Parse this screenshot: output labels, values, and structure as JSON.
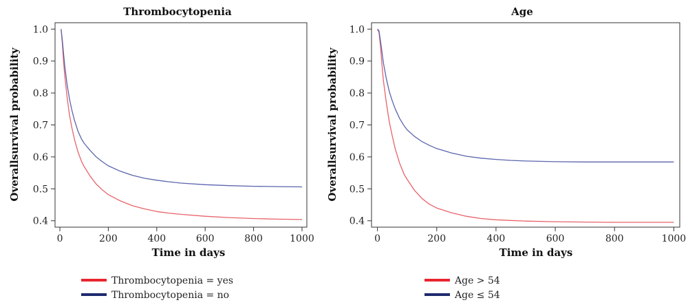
{
  "chart_data": [
    {
      "type": "line",
      "title": "Thrombocytopenia",
      "xlabel": "Time in days",
      "ylabel": "Overallsurvival probability",
      "xlim": [
        -20,
        1020
      ],
      "ylim": [
        0.38,
        1.02
      ],
      "xticks": [
        0,
        200,
        400,
        600,
        800,
        1000
      ],
      "xtick_labels": [
        "0",
        "200",
        "400",
        "600",
        "800",
        "1000"
      ],
      "yticks": [
        0.4,
        0.5,
        0.6,
        0.7,
        0.8,
        0.9,
        1.0
      ],
      "ytick_labels": [
        "0.4",
        "0.5",
        "0.6",
        "0.7",
        "0.8",
        "0.9",
        "1.0"
      ],
      "grid": false,
      "legend_position": "bottom-left",
      "series": [
        {
          "name": "Thrombocytopenia = yes",
          "color": "#e8626a",
          "x": [
            5,
            10,
            15,
            20,
            30,
            40,
            50,
            60,
            75,
            90,
            100,
            125,
            150,
            175,
            200,
            250,
            300,
            350,
            400,
            450,
            500,
            600,
            700,
            800,
            900,
            1000
          ],
          "y": [
            1.0,
            0.955,
            0.9,
            0.855,
            0.785,
            0.73,
            0.69,
            0.655,
            0.615,
            0.585,
            0.57,
            0.54,
            0.515,
            0.497,
            0.482,
            0.462,
            0.447,
            0.437,
            0.429,
            0.424,
            0.42,
            0.414,
            0.41,
            0.407,
            0.405,
            0.404
          ]
        },
        {
          "name": "Thrombocytopenia = no",
          "color": "#5a64ad",
          "x": [
            5,
            10,
            15,
            20,
            30,
            40,
            50,
            60,
            75,
            90,
            100,
            125,
            150,
            175,
            200,
            250,
            300,
            350,
            400,
            450,
            500,
            600,
            700,
            800,
            900,
            1000
          ],
          "y": [
            1.0,
            0.965,
            0.925,
            0.885,
            0.825,
            0.78,
            0.745,
            0.715,
            0.68,
            0.655,
            0.643,
            0.62,
            0.6,
            0.585,
            0.572,
            0.555,
            0.542,
            0.533,
            0.527,
            0.522,
            0.518,
            0.513,
            0.51,
            0.508,
            0.507,
            0.506
          ]
        }
      ]
    },
    {
      "type": "line",
      "title": "Age",
      "xlabel": "Time in days",
      "ylabel": "Overallsurvival probability",
      "xlim": [
        -20,
        1020
      ],
      "ylim": [
        0.38,
        1.02
      ],
      "xticks": [
        0,
        200,
        400,
        600,
        800,
        1000
      ],
      "xtick_labels": [
        "0",
        "200",
        "400",
        "600",
        "800",
        "1000"
      ],
      "yticks": [
        0.4,
        0.5,
        0.6,
        0.7,
        0.8,
        0.9,
        1.0
      ],
      "ytick_labels": [
        "0.4",
        "0.5",
        "0.6",
        "0.7",
        "0.8",
        "0.9",
        "1.0"
      ],
      "grid": false,
      "legend_position": "bottom-left",
      "series": [
        {
          "name": "Age > 54",
          "color": "#e8626a",
          "x": [
            0,
            5,
            10,
            15,
            20,
            30,
            40,
            50,
            60,
            75,
            90,
            100,
            125,
            150,
            175,
            200,
            250,
            300,
            350,
            400,
            450,
            500,
            600,
            700,
            800,
            900,
            1000
          ],
          "y": [
            1.0,
            0.99,
            0.95,
            0.89,
            0.84,
            0.77,
            0.71,
            0.665,
            0.625,
            0.58,
            0.545,
            0.53,
            0.495,
            0.47,
            0.452,
            0.44,
            0.425,
            0.414,
            0.407,
            0.403,
            0.401,
            0.399,
            0.397,
            0.396,
            0.395,
            0.395,
            0.395
          ]
        },
        {
          "name": "Age ≤ 54",
          "color": "#5a64ad",
          "x": [
            0,
            5,
            10,
            15,
            20,
            30,
            40,
            50,
            60,
            75,
            90,
            100,
            125,
            150,
            175,
            200,
            250,
            300,
            350,
            400,
            450,
            500,
            600,
            700,
            800,
            900,
            1000
          ],
          "y": [
            1.0,
            0.995,
            0.965,
            0.93,
            0.895,
            0.845,
            0.805,
            0.775,
            0.75,
            0.72,
            0.697,
            0.685,
            0.664,
            0.648,
            0.636,
            0.626,
            0.612,
            0.602,
            0.596,
            0.592,
            0.589,
            0.587,
            0.585,
            0.584,
            0.584,
            0.584,
            0.584
          ]
        }
      ]
    }
  ],
  "legends": [
    {
      "items": [
        {
          "label": "Thrombocytopenia = yes",
          "color": "#e8262f"
        },
        {
          "label": "Thrombocytopenia = no",
          "color": "#1e2a6e"
        }
      ]
    },
    {
      "items": [
        {
          "label": "Age > 54",
          "color": "#e8262f"
        },
        {
          "label": "Age ≤ 54",
          "color": "#1e2a6e"
        }
      ]
    }
  ]
}
